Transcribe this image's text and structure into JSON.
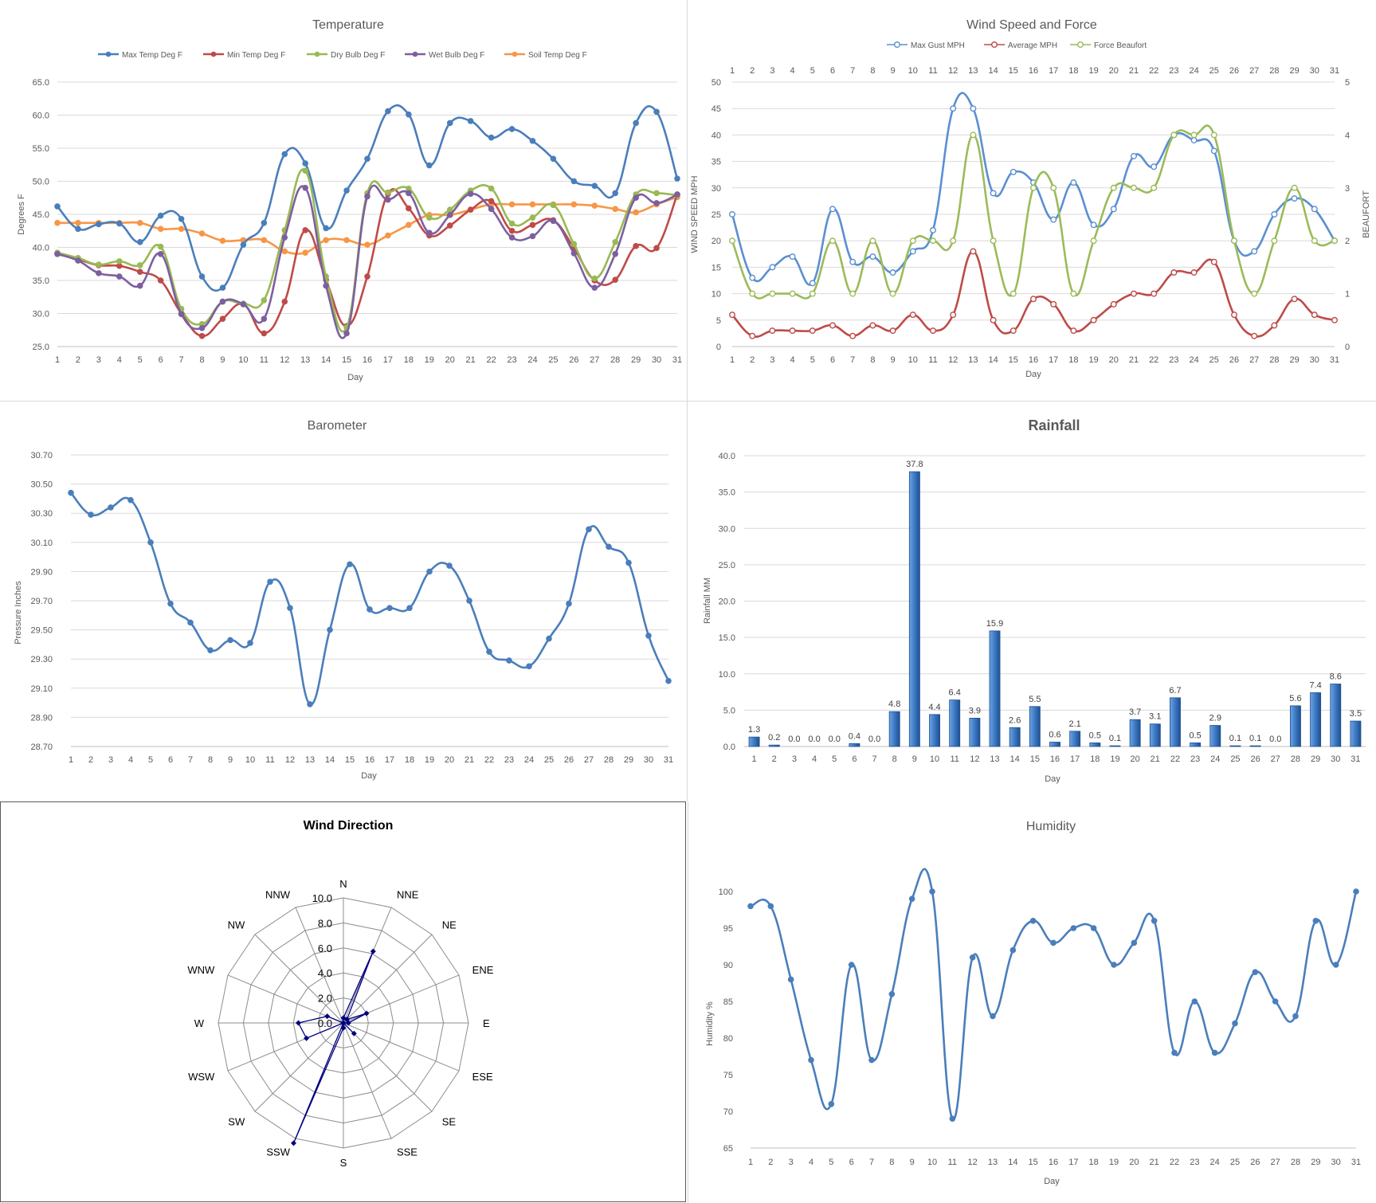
{
  "days": [
    "1",
    "2",
    "3",
    "4",
    "5",
    "6",
    "7",
    "8",
    "9",
    "10",
    "11",
    "12",
    "13",
    "14",
    "15",
    "16",
    "17",
    "18",
    "19",
    "20",
    "21",
    "22",
    "23",
    "24",
    "25",
    "26",
    "27",
    "28",
    "29",
    "30",
    "31"
  ],
  "charts": {
    "temperature": {
      "title": "Temperature",
      "xlabel": "Day",
      "ylabel": "Degrees F",
      "yticks": [
        "25.0",
        "30.0",
        "35.0",
        "40.0",
        "45.0",
        "50.0",
        "55.0",
        "60.0",
        "65.0"
      ],
      "legend": [
        "Max Temp Deg F",
        "Min Temp Deg F",
        "Dry Bulb Deg F",
        "Wet Bulb Deg F",
        "Soil Temp Deg F"
      ]
    },
    "wind_speed": {
      "title": "Wind Speed and Force",
      "xlabel": "Day",
      "ylabel": "WIND SPEED MPH",
      "y2label": "BEAUFORT",
      "yticks": [
        "0",
        "5",
        "10",
        "15",
        "20",
        "25",
        "30",
        "35",
        "40",
        "45",
        "50"
      ],
      "y2ticks": [
        "0",
        "1",
        "2",
        "3",
        "4",
        "5"
      ],
      "legend": [
        "Max Gust MPH",
        "Average MPH",
        "Force Beaufort"
      ]
    },
    "barometer": {
      "title": "Barometer",
      "xlabel": "Day",
      "ylabel": "Pressure Inches",
      "yticks": [
        "28.70",
        "28.90",
        "29.10",
        "29.30",
        "29.50",
        "29.70",
        "29.90",
        "30.10",
        "30.30",
        "30.50",
        "30.70"
      ]
    },
    "rainfall": {
      "title": "Rainfall",
      "xlabel": "Day",
      "ylabel": "Rainfall MM",
      "yticks": [
        "0.0",
        "5.0",
        "10.0",
        "15.0",
        "20.0",
        "25.0",
        "30.0",
        "35.0",
        "40.0"
      ],
      "labels": [
        "1.3",
        "0.2",
        "0.0",
        "0.0",
        "0.0",
        "0.4",
        "0.0",
        "4.8",
        "37.8",
        "4.4",
        "6.4",
        "3.9",
        "15.9",
        "2.6",
        "5.5",
        "0.6",
        "2.1",
        "0.5",
        "0.1",
        "3.7",
        "3.1",
        "6.7",
        "0.5",
        "2.9",
        "0.1",
        "0.1",
        "0.0",
        "5.6",
        "7.4",
        "8.6",
        "3.5"
      ]
    },
    "wind_direction": {
      "title": "Wind Direction",
      "directions": [
        "N",
        "NNE",
        "NE",
        "ENE",
        "E",
        "ESE",
        "SE",
        "SSE",
        "S",
        "SSW",
        "SW",
        "WSW",
        "W",
        "WNW",
        "NW",
        "NNW"
      ],
      "rticks": [
        "0.0",
        "2.0",
        "4.0",
        "6.0",
        "8.0",
        "10.0"
      ]
    },
    "humidity": {
      "title": "Humidity",
      "xlabel": "Day",
      "ylabel": "Humidity %",
      "yticks": [
        "65",
        "70",
        "75",
        "80",
        "85",
        "90",
        "95",
        "100"
      ]
    }
  },
  "colors": {
    "blue": "#4a7ebb",
    "red": "#be4b48",
    "green": "#98b954",
    "purple": "#7d5fa0",
    "orange": "#f79646",
    "gust_blue": "#5b8fd1",
    "beaufort_green": "#9bbb59",
    "navy": "#000080",
    "bar_blue": "#2f6db5"
  },
  "chart_data": [
    {
      "type": "line",
      "title": "Temperature",
      "xlabel": "Day",
      "ylabel": "Degrees F",
      "ylim": [
        25,
        65
      ],
      "grid": true,
      "legend_position": "top",
      "x": [
        1,
        2,
        3,
        4,
        5,
        6,
        7,
        8,
        9,
        10,
        11,
        12,
        13,
        14,
        15,
        16,
        17,
        18,
        19,
        20,
        21,
        22,
        23,
        24,
        25,
        26,
        27,
        28,
        29,
        30,
        31
      ],
      "series": [
        {
          "name": "Max Temp Deg F",
          "values": [
            46.2,
            42.8,
            43.5,
            43.6,
            40.8,
            44.8,
            44.3,
            35.6,
            33.9,
            40.4,
            43.7,
            54.1,
            52.7,
            42.9,
            48.6,
            53.4,
            60.6,
            60.1,
            52.4,
            58.8,
            59.1,
            56.6,
            57.9,
            56.1,
            53.4,
            50.0,
            49.3,
            48.2,
            58.8,
            60.5,
            50.4
          ]
        },
        {
          "name": "Min Temp Deg F",
          "values": [
            39.0,
            38.2,
            37.3,
            37.2,
            36.3,
            35.0,
            30.0,
            26.6,
            29.2,
            31.4,
            27.0,
            31.8,
            42.6,
            35.1,
            28.1,
            35.6,
            48.1,
            45.9,
            41.8,
            43.3,
            45.7,
            47.0,
            42.5,
            43.4,
            44.1,
            39.9,
            35.0,
            35.1,
            40.2,
            39.9,
            48.0
          ]
        },
        {
          "name": "Dry Bulb Deg F",
          "values": [
            39.2,
            38.4,
            37.4,
            37.9,
            37.3,
            40.1,
            30.7,
            28.4,
            31.8,
            31.5,
            32.0,
            42.6,
            51.6,
            35.6,
            27.9,
            48.2,
            48.3,
            48.9,
            44.5,
            45.7,
            48.6,
            48.9,
            43.6,
            44.5,
            46.4,
            40.5,
            35.3,
            40.8,
            48.0,
            48.2,
            47.9
          ]
        },
        {
          "name": "Wet Bulb Deg F",
          "values": [
            39.0,
            38.0,
            36.1,
            35.6,
            34.2,
            39.0,
            29.9,
            27.8,
            31.8,
            31.4,
            29.2,
            41.5,
            49.0,
            34.2,
            27.0,
            47.7,
            47.2,
            48.2,
            42.2,
            44.9,
            48.1,
            45.8,
            41.5,
            41.7,
            44.0,
            39.1,
            33.9,
            39.0,
            47.5,
            46.7,
            48.0
          ]
        },
        {
          "name": "Soil Temp Deg F",
          "values": [
            43.7,
            43.7,
            43.7,
            43.7,
            43.7,
            42.8,
            42.8,
            42.1,
            41.0,
            41.1,
            41.1,
            39.4,
            39.2,
            41.1,
            41.1,
            40.4,
            41.8,
            43.4,
            44.9,
            44.9,
            45.7,
            46.5,
            46.5,
            46.5,
            46.5,
            46.5,
            46.3,
            45.8,
            45.3,
            46.5,
            47.6
          ]
        }
      ]
    },
    {
      "type": "line",
      "title": "Wind Speed and Force",
      "xlabel": "Day",
      "ylabel": "WIND SPEED MPH",
      "y2label": "BEAUFORT",
      "ylim": [
        0,
        50
      ],
      "y2lim": [
        0,
        5
      ],
      "grid": true,
      "legend_position": "top",
      "x": [
        1,
        2,
        3,
        4,
        5,
        6,
        7,
        8,
        9,
        10,
        11,
        12,
        13,
        14,
        15,
        16,
        17,
        18,
        19,
        20,
        21,
        22,
        23,
        24,
        25,
        26,
        27,
        28,
        29,
        30,
        31
      ],
      "series": [
        {
          "name": "Max Gust MPH",
          "axis": "left",
          "values": [
            25,
            13,
            15,
            17,
            12,
            26,
            16,
            17,
            14,
            18,
            22,
            45,
            45,
            29,
            33,
            31,
            24,
            31,
            23,
            26,
            36,
            34,
            40,
            39,
            37,
            20,
            18,
            25,
            28,
            26,
            20
          ]
        },
        {
          "name": "Average MPH",
          "axis": "left",
          "values": [
            6,
            2,
            3,
            3,
            3,
            4,
            2,
            4,
            3,
            6,
            3,
            6,
            18,
            5,
            3,
            9,
            8,
            3,
            5,
            8,
            10,
            10,
            14,
            14,
            16,
            6,
            2,
            4,
            9,
            6,
            5
          ]
        },
        {
          "name": "Force Beaufort",
          "axis": "right",
          "values": [
            2,
            1,
            1,
            1,
            1,
            2,
            1,
            2,
            1,
            2,
            2,
            2,
            4,
            2,
            1,
            3,
            3,
            1,
            2,
            3,
            3,
            3,
            4,
            4,
            4,
            2,
            1,
            2,
            3,
            2,
            2
          ]
        }
      ]
    },
    {
      "type": "line",
      "title": "Barometer",
      "xlabel": "Day",
      "ylabel": "Pressure Inches",
      "ylim": [
        28.7,
        30.7
      ],
      "grid": true,
      "x": [
        1,
        2,
        3,
        4,
        5,
        6,
        7,
        8,
        9,
        10,
        11,
        12,
        13,
        14,
        15,
        16,
        17,
        18,
        19,
        20,
        21,
        22,
        23,
        24,
        25,
        26,
        27,
        28,
        29,
        30,
        31
      ],
      "series": [
        {
          "values": [
            30.44,
            30.29,
            30.34,
            30.39,
            30.1,
            29.68,
            29.55,
            29.36,
            29.43,
            29.41,
            29.83,
            29.65,
            28.99,
            29.5,
            29.95,
            29.64,
            29.65,
            29.65,
            29.9,
            29.94,
            29.7,
            29.35,
            29.29,
            29.25,
            29.44,
            29.68,
            30.19,
            30.07,
            29.96,
            29.46,
            29.15
          ]
        }
      ]
    },
    {
      "type": "bar",
      "title": "Rainfall",
      "xlabel": "Day",
      "ylabel": "Rainfall MM",
      "ylim": [
        0,
        40
      ],
      "grid": true,
      "categories": [
        "1",
        "2",
        "3",
        "4",
        "5",
        "6",
        "7",
        "8",
        "9",
        "10",
        "11",
        "12",
        "13",
        "14",
        "15",
        "16",
        "17",
        "18",
        "19",
        "20",
        "21",
        "22",
        "23",
        "24",
        "25",
        "26",
        "27",
        "28",
        "29",
        "30",
        "31"
      ],
      "values": [
        1.3,
        0.2,
        0.0,
        0.0,
        0.0,
        0.4,
        0.0,
        4.8,
        37.8,
        4.4,
        6.4,
        3.9,
        15.9,
        2.6,
        5.5,
        0.6,
        2.1,
        0.5,
        0.1,
        3.7,
        3.1,
        6.7,
        0.5,
        2.9,
        0.1,
        0.1,
        0.0,
        5.6,
        7.4,
        8.6,
        3.5
      ]
    },
    {
      "type": "radar",
      "title": "Wind Direction",
      "rlim": [
        0,
        10
      ],
      "categories": [
        "N",
        "NNE",
        "NE",
        "ENE",
        "E",
        "ESE",
        "SE",
        "SSE",
        "S",
        "SSW",
        "SW",
        "WSW",
        "W",
        "WNW",
        "NW",
        "NNW"
      ],
      "values": [
        0.4,
        6.2,
        0.4,
        2.0,
        0.4,
        0,
        1.2,
        0,
        0.4,
        10.4,
        0,
        3.2,
        3.6,
        1.4,
        0,
        0
      ]
    },
    {
      "type": "line",
      "title": "Humidity",
      "xlabel": "Day",
      "ylabel": "Humidity %",
      "ylim": [
        65,
        100
      ],
      "grid": false,
      "x": [
        1,
        2,
        3,
        4,
        5,
        6,
        7,
        8,
        9,
        10,
        11,
        12,
        13,
        14,
        15,
        16,
        17,
        18,
        19,
        20,
        21,
        22,
        23,
        24,
        25,
        26,
        27,
        28,
        29,
        30,
        31
      ],
      "series": [
        {
          "values": [
            98,
            98,
            88,
            77,
            71,
            90,
            77,
            86,
            99,
            100,
            69,
            91,
            83,
            92,
            96,
            93,
            95,
            95,
            90,
            93,
            96,
            78,
            85,
            78,
            82,
            89,
            85,
            83,
            96,
            90,
            100
          ]
        }
      ]
    }
  ]
}
